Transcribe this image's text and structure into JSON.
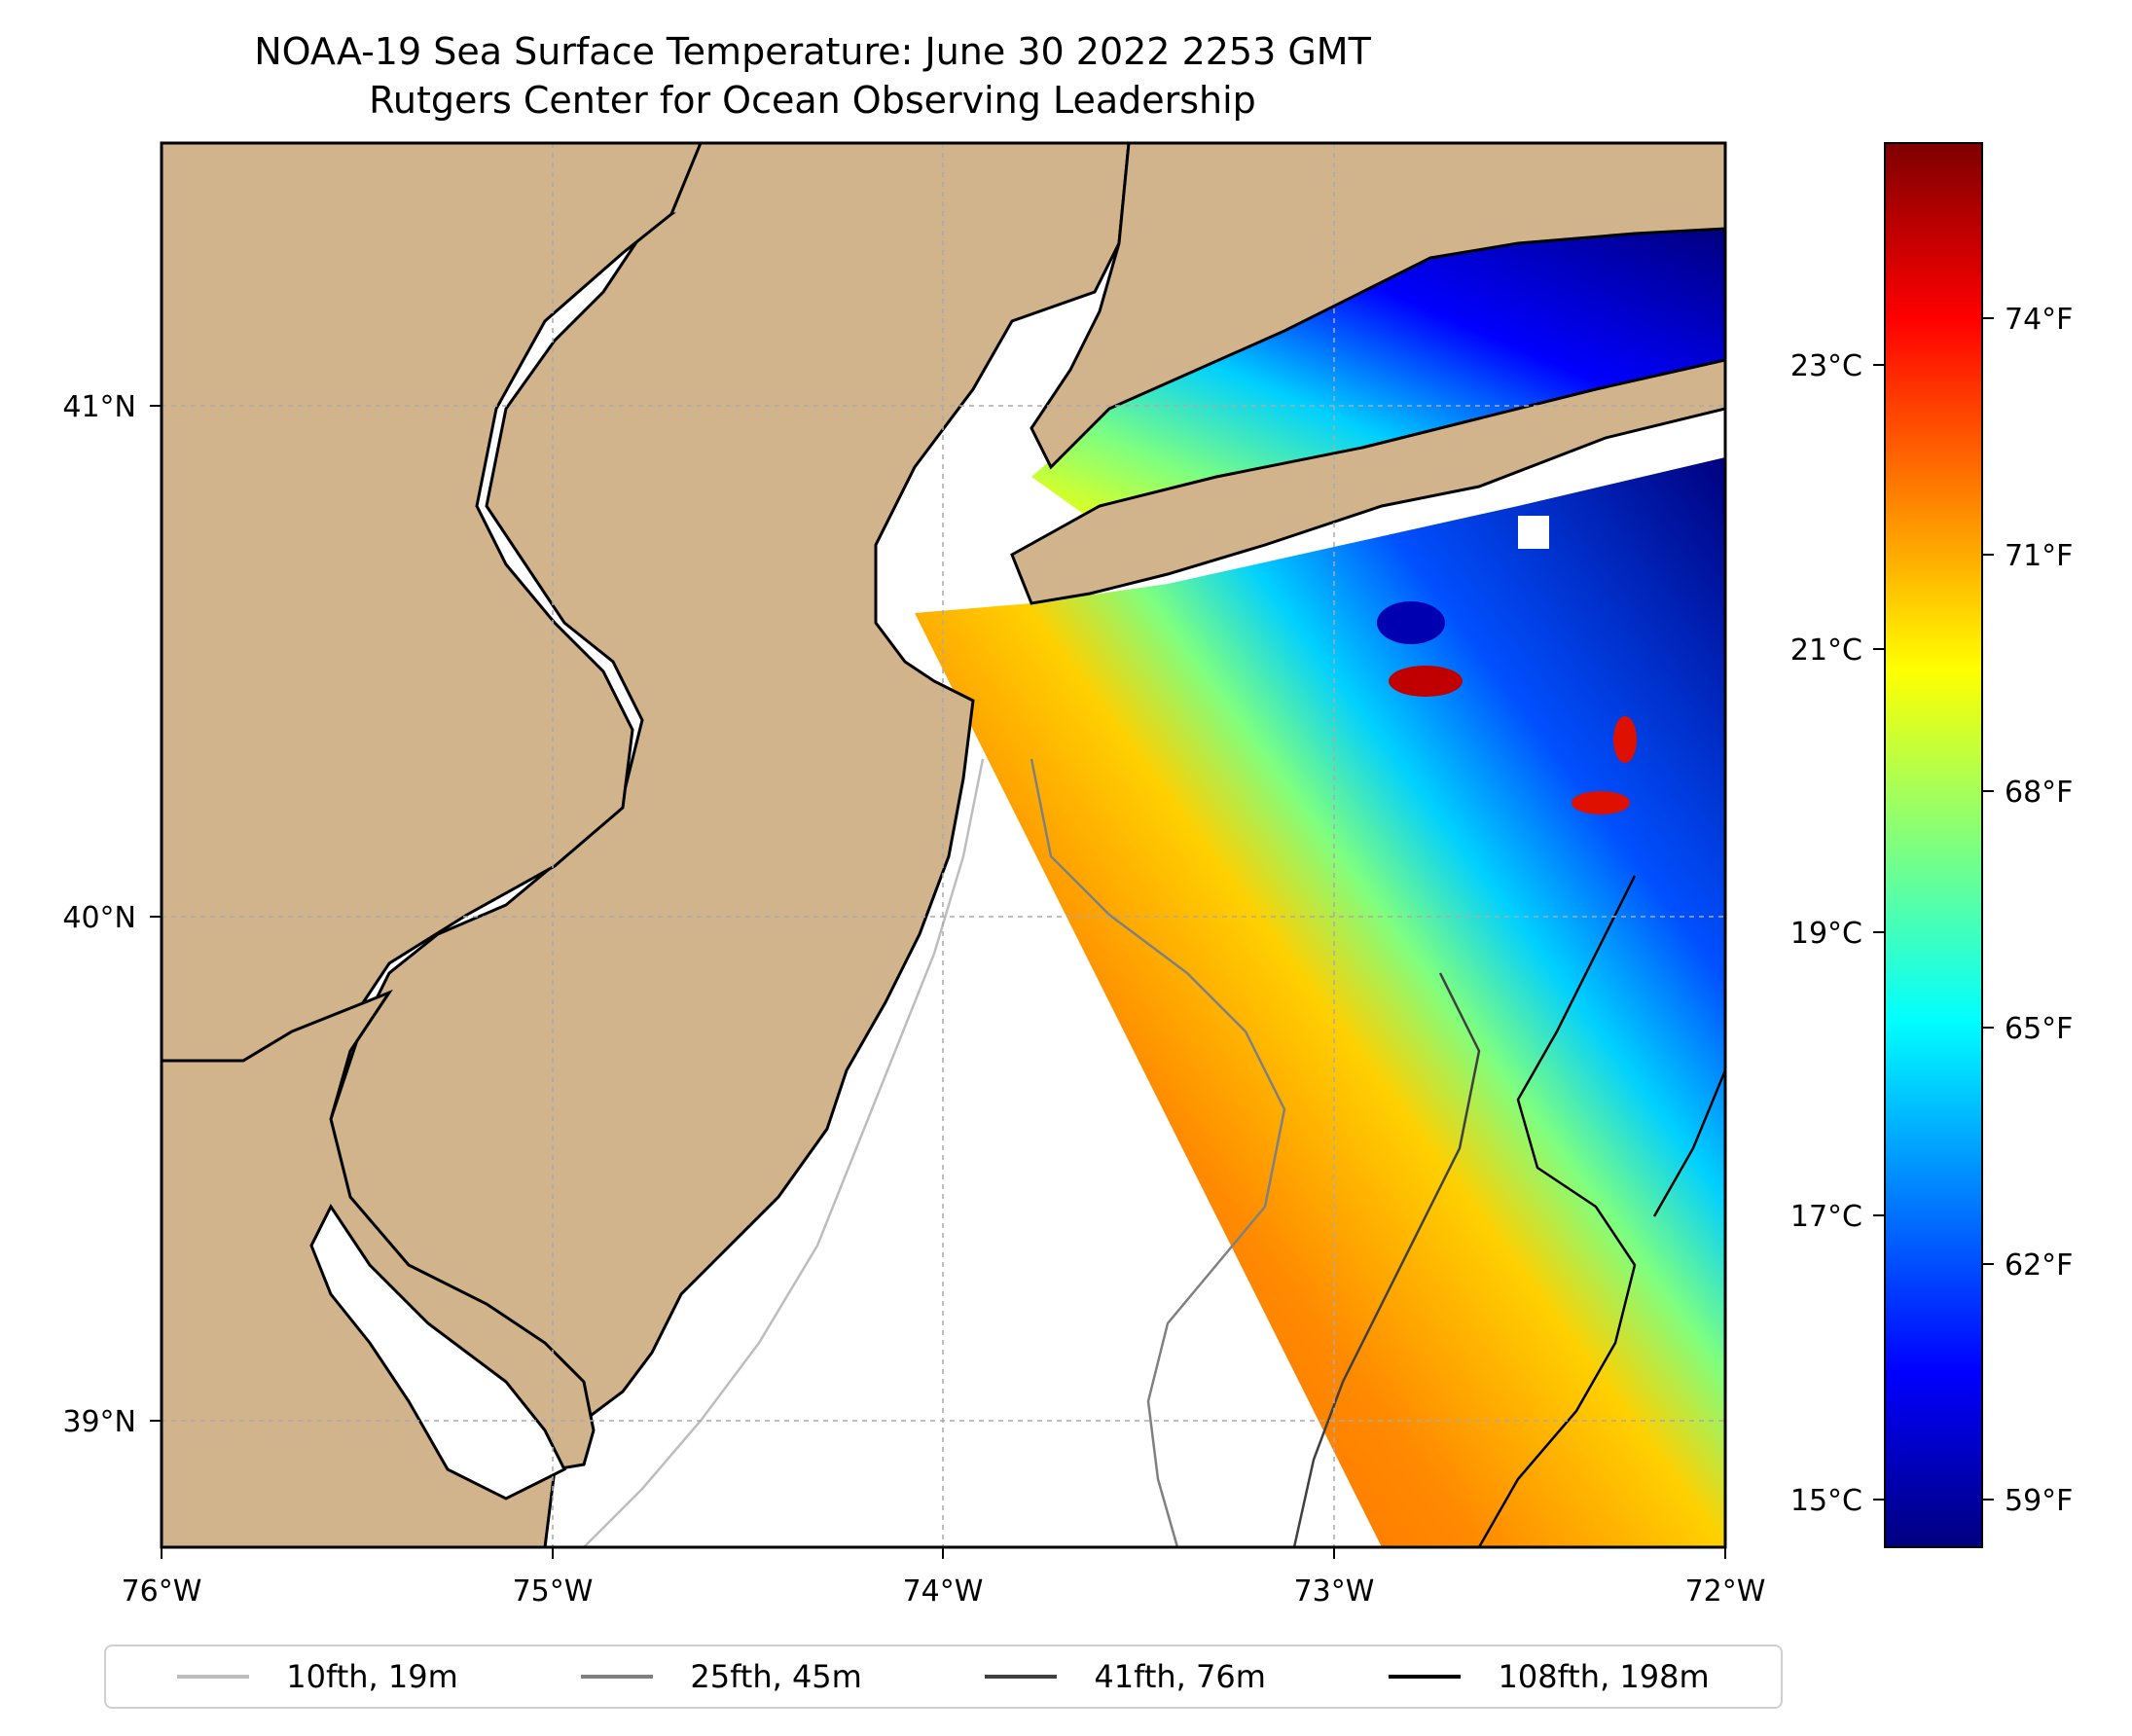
{
  "title": {
    "line1": "NOAA-19 Sea Surface Temperature: June 30 2022 2253 GMT",
    "line2": "Rutgers Center for Ocean Observing Leadership"
  },
  "map": {
    "x_ticks": [
      "76°W",
      "75°W",
      "74°W",
      "73°W",
      "72°W"
    ],
    "y_ticks": [
      "41°N",
      "40°N",
      "39°N"
    ],
    "land_color": "#d2b48c",
    "water_color": "#ffffff"
  },
  "colorbar": {
    "celsius_ticks": [
      "23°C",
      "21°C",
      "19°C",
      "17°C",
      "15°C"
    ],
    "fahrenheit_ticks": [
      "74°F",
      "71°F",
      "68°F",
      "65°F",
      "62°F",
      "59°F"
    ],
    "colormap": [
      "#00007f",
      "#0000ff",
      "#007fff",
      "#00ffff",
      "#7fff7f",
      "#ffff00",
      "#ff7f00",
      "#ff0000",
      "#7f0000"
    ]
  },
  "legend": {
    "items": [
      {
        "label": "10fth, 19m",
        "color": "#bdbdbd"
      },
      {
        "label": "25fth, 45m",
        "color": "#808080"
      },
      {
        "label": "41fth, 76m",
        "color": "#404040"
      },
      {
        "label": "108fth, 198m",
        "color": "#000000"
      }
    ]
  }
}
